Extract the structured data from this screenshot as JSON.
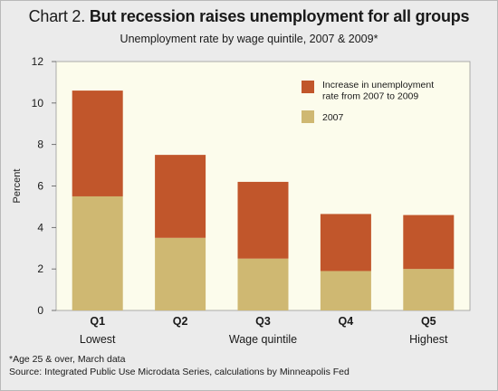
{
  "header": {
    "title_lead": "Chart 2.",
    "title_main": "But recession raises unemployment for all groups",
    "subtitle": "Unemployment rate by wage quintile, 2007 & 2009*"
  },
  "chart_data": {
    "type": "bar",
    "stacked": true,
    "categories": [
      "Q1",
      "Q2",
      "Q3",
      "Q4",
      "Q5"
    ],
    "category_sublabels": [
      "Lowest",
      "",
      "Wage quintile",
      "",
      "Highest"
    ],
    "series": [
      {
        "name": "2007",
        "values": [
          5.5,
          3.5,
          2.5,
          1.9,
          2.0
        ],
        "color": "#cfb872"
      },
      {
        "name": "Increase in unemployment rate from 2007 to 2009",
        "values": [
          5.1,
          4.0,
          3.7,
          2.75,
          2.6
        ],
        "color": "#c1562b"
      }
    ],
    "ylabel": "Percent",
    "ylim": [
      0,
      12
    ],
    "yticks": [
      0,
      2,
      4,
      6,
      8,
      10,
      12
    ],
    "legend_entries": [
      {
        "lines": [
          "Increase in unemployment",
          "rate from 2007 to 2009"
        ],
        "color": "#c1562b"
      },
      {
        "lines": [
          "2007"
        ],
        "color": "#cfb872"
      }
    ],
    "legend_position": "top-right",
    "plot_background": "#fcfcec"
  },
  "notes": {
    "footnote": "*Age 25 & over, March data",
    "source": "Source: Integrated Public Use Microdata Series, calculations by Minneapolis Fed"
  }
}
